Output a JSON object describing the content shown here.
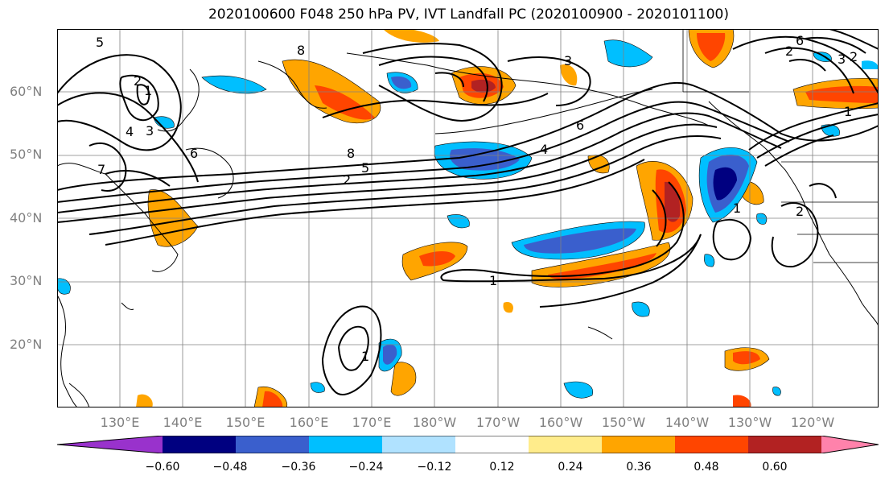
{
  "title": "2020100600 F048 250 hPa PV, IVT Landfall PC (2020100900 - 2020101100)",
  "latitude_labels": [
    "60°N",
    "50°N",
    "40°N",
    "30°N",
    "20°N"
  ],
  "longitude_labels": [
    "130°E",
    "140°E",
    "150°E",
    "160°E",
    "170°E",
    "180°W",
    "170°W",
    "160°W",
    "150°W",
    "140°W",
    "130°W",
    "120°W"
  ],
  "colorbar": {
    "tick_labels": [
      "−0.60",
      "−0.48",
      "−0.36",
      "−0.24",
      "−0.12",
      "0.12",
      "0.24",
      "0.36",
      "0.48",
      "0.60"
    ],
    "colors": [
      "#9932cc",
      "#000080",
      "#3a5fcd",
      "#00bfff",
      "#b0e2ff",
      "#ffffff",
      "#ffec8b",
      "#ffa500",
      "#ff4500",
      "#b22222",
      "#ff82ab"
    ]
  },
  "contour_labels": [
    "5",
    "1",
    "4",
    "3",
    "2",
    "6",
    "7",
    "8",
    "5",
    "2",
    "8",
    "3",
    "6",
    "4",
    "1",
    "2",
    "2",
    "6",
    "3",
    "1",
    "1",
    "2",
    "1"
  ]
}
